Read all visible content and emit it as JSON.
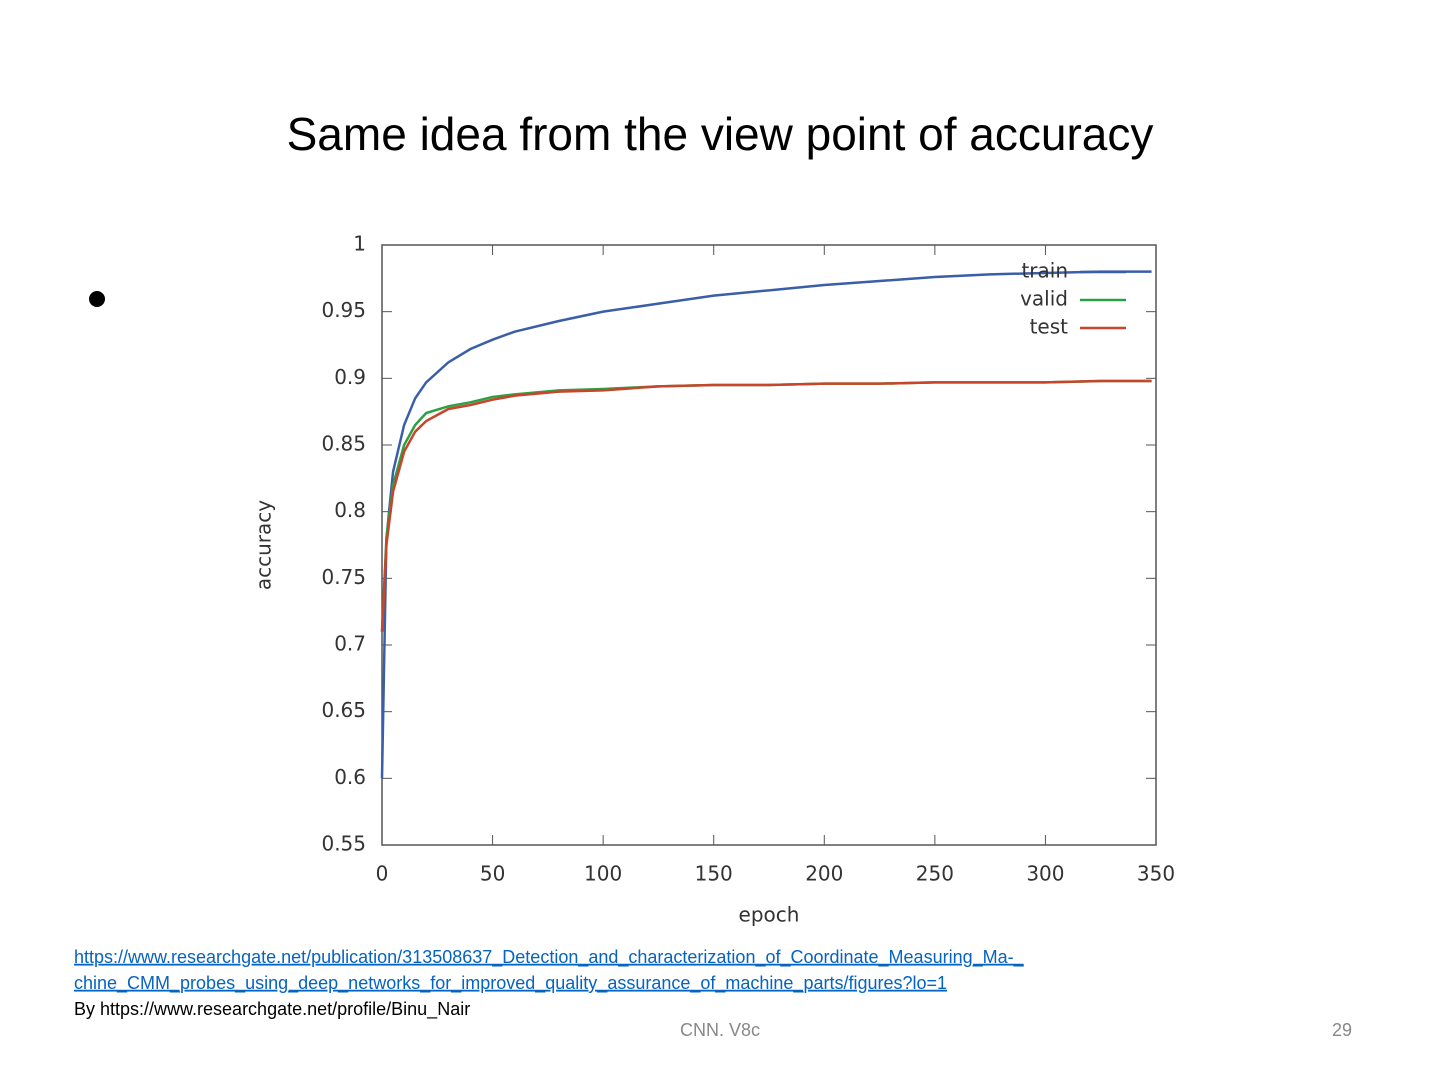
{
  "title": "Same idea from the view point of accuracy",
  "source_link": [
    "https://www.researchgate.net/publication/313508637_Detection_and_characterization_of_Coordinate_Measuring_Ma-_",
    "chine_CMM_probes_using_deep_networks_for_improved_quality_assurance_of_machine_parts/figures?lo=1"
  ],
  "attribution": "By https://www.researchgate.net/profile/Binu_Nair",
  "footer": "CNN. V8c",
  "page_number": "29",
  "chart_data": {
    "type": "line",
    "x_label": "epoch",
    "y_label": "accuracy",
    "x": [
      0,
      2,
      5,
      10,
      15,
      20,
      30,
      40,
      50,
      60,
      80,
      100,
      125,
      150,
      175,
      200,
      225,
      250,
      275,
      300,
      325,
      348
    ],
    "series": [
      {
        "name": "train",
        "color": "#3a5ea8",
        "values": [
          0.6,
          0.78,
          0.83,
          0.865,
          0.885,
          0.897,
          0.912,
          0.922,
          0.929,
          0.935,
          0.943,
          0.95,
          0.956,
          0.962,
          0.966,
          0.97,
          0.973,
          0.976,
          0.978,
          0.979,
          0.98,
          0.98
        ]
      },
      {
        "name": "valid",
        "color": "#2ea043",
        "values": [
          0.71,
          0.78,
          0.82,
          0.85,
          0.865,
          0.874,
          0.879,
          0.882,
          0.886,
          0.888,
          0.891,
          0.892,
          0.894,
          0.895,
          0.895,
          0.896,
          0.896,
          0.897,
          0.897,
          0.897,
          0.898,
          0.898
        ]
      },
      {
        "name": "test",
        "color": "#c8442a",
        "values": [
          0.71,
          0.775,
          0.815,
          0.845,
          0.86,
          0.868,
          0.877,
          0.88,
          0.884,
          0.887,
          0.89,
          0.891,
          0.894,
          0.895,
          0.895,
          0.896,
          0.896,
          0.897,
          0.897,
          0.897,
          0.898,
          0.898
        ]
      }
    ],
    "xlim": [
      0,
      350
    ],
    "xticks": [
      0,
      50,
      100,
      150,
      200,
      250,
      300,
      350
    ],
    "ylim": [
      0.55,
      1
    ],
    "yticks": [
      0.55,
      0.6,
      0.65,
      0.7,
      0.75,
      0.8,
      0.85,
      0.9,
      0.95,
      1
    ],
    "grid": false,
    "legend": "top-right"
  }
}
